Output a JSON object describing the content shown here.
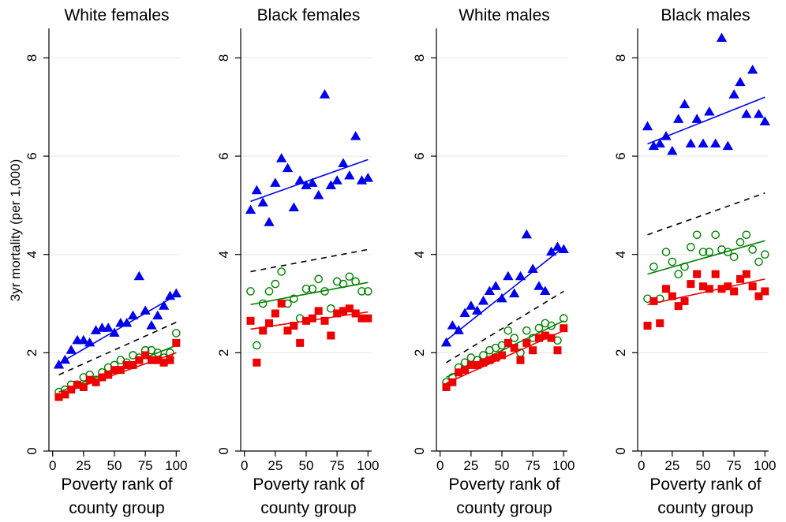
{
  "figure": {
    "ylabel": "3yr mortality (per 1,000)",
    "xlabel_line1": "Poverty rank of",
    "xlabel_line2": "county group",
    "x_ticks": [
      0,
      25,
      50,
      75,
      100
    ],
    "y_ticks": [
      0,
      2,
      4,
      6,
      8
    ],
    "ylim": [
      0,
      8.6
    ],
    "xlim": [
      -3,
      103
    ],
    "grid": true,
    "legend": "none",
    "colors": {
      "high_mortality_triangles": "#0000ee",
      "middle_circles": "#008000",
      "low_squares": "#ee0000",
      "dashed": "#000000"
    }
  },
  "chart_data": [
    {
      "type": "scatter",
      "title": "White females",
      "xlim": [
        -3,
        103
      ],
      "ylim": [
        0,
        8.6
      ],
      "series": [
        {
          "marker": "triangle",
          "color": "#0000ee",
          "x": [
            5,
            10,
            15,
            20,
            25,
            30,
            35,
            40,
            45,
            50,
            55,
            60,
            65,
            70,
            75,
            80,
            85,
            90,
            95,
            100
          ],
          "y": [
            1.75,
            1.85,
            2.05,
            2.25,
            2.25,
            2.2,
            2.45,
            2.5,
            2.5,
            2.4,
            2.6,
            2.6,
            2.75,
            3.55,
            2.85,
            2.55,
            2.75,
            2.95,
            3.15,
            3.2
          ],
          "fit": [
            1.78,
            3.17
          ]
        },
        {
          "marker": "circle-open",
          "color": "#008000",
          "x": [
            5,
            10,
            15,
            20,
            25,
            30,
            35,
            40,
            45,
            50,
            55,
            60,
            65,
            70,
            75,
            80,
            85,
            90,
            95,
            100
          ],
          "y": [
            1.2,
            1.25,
            1.35,
            1.35,
            1.5,
            1.55,
            1.45,
            1.6,
            1.7,
            1.75,
            1.85,
            1.8,
            1.95,
            1.9,
            2.05,
            2.05,
            2.0,
            1.9,
            2.0,
            2.4
          ],
          "fit": [
            1.2,
            2.15
          ]
        },
        {
          "marker": "square",
          "color": "#ee0000",
          "x": [
            5,
            10,
            15,
            20,
            25,
            30,
            35,
            40,
            45,
            50,
            55,
            60,
            65,
            70,
            75,
            80,
            85,
            90,
            95,
            100
          ],
          "y": [
            1.1,
            1.15,
            1.25,
            1.35,
            1.3,
            1.45,
            1.4,
            1.5,
            1.55,
            1.65,
            1.65,
            1.75,
            1.75,
            1.85,
            1.95,
            1.85,
            1.85,
            1.8,
            1.85,
            2.2
          ],
          "fit": [
            1.15,
            2.0
          ]
        },
        {
          "line": "dashed",
          "color": "#000000",
          "fit": [
            1.55,
            2.62
          ]
        }
      ]
    },
    {
      "type": "scatter",
      "title": "Black females",
      "xlim": [
        -3,
        103
      ],
      "ylim": [
        0,
        8.6
      ],
      "series": [
        {
          "marker": "triangle",
          "color": "#0000ee",
          "x": [
            5,
            10,
            15,
            20,
            25,
            30,
            35,
            40,
            45,
            50,
            55,
            60,
            65,
            70,
            75,
            80,
            85,
            90,
            95,
            100
          ],
          "y": [
            4.9,
            5.3,
            5.05,
            4.65,
            5.45,
            5.95,
            5.75,
            4.95,
            5.5,
            5.4,
            5.45,
            5.2,
            7.25,
            5.4,
            5.5,
            5.85,
            5.6,
            6.4,
            5.5,
            5.55
          ],
          "fit": [
            5.08,
            5.93
          ]
        },
        {
          "marker": "circle-open",
          "color": "#008000",
          "x": [
            5,
            10,
            15,
            20,
            25,
            30,
            35,
            40,
            45,
            50,
            55,
            60,
            65,
            70,
            75,
            80,
            85,
            90,
            95,
            100
          ],
          "y": [
            3.25,
            2.15,
            3.0,
            3.25,
            3.4,
            3.65,
            3.0,
            3.1,
            2.7,
            3.3,
            3.3,
            3.5,
            3.25,
            2.9,
            3.45,
            3.4,
            3.55,
            3.45,
            3.25,
            3.25
          ],
          "fit": [
            2.98,
            3.43
          ]
        },
        {
          "marker": "square",
          "color": "#ee0000",
          "x": [
            5,
            10,
            15,
            20,
            25,
            30,
            35,
            40,
            45,
            50,
            55,
            60,
            65,
            70,
            75,
            80,
            85,
            90,
            95,
            100
          ],
          "y": [
            2.65,
            1.8,
            2.45,
            2.6,
            2.8,
            3.0,
            2.45,
            2.55,
            2.2,
            2.65,
            2.7,
            2.85,
            2.65,
            2.35,
            2.8,
            2.85,
            2.9,
            2.8,
            2.7,
            2.7
          ],
          "fit": [
            2.48,
            2.83
          ]
        },
        {
          "line": "dashed",
          "color": "#000000",
          "fit": [
            3.65,
            4.1
          ]
        }
      ]
    },
    {
      "type": "scatter",
      "title": "White males",
      "xlim": [
        -3,
        103
      ],
      "ylim": [
        0,
        8.6
      ],
      "series": [
        {
          "marker": "triangle",
          "color": "#0000ee",
          "x": [
            5,
            10,
            15,
            20,
            25,
            30,
            35,
            40,
            45,
            50,
            55,
            60,
            65,
            70,
            75,
            80,
            85,
            90,
            95,
            100
          ],
          "y": [
            2.2,
            2.55,
            2.45,
            2.8,
            2.95,
            2.85,
            3.05,
            3.25,
            3.35,
            3.1,
            3.55,
            3.2,
            3.55,
            4.4,
            3.7,
            3.35,
            3.25,
            4.05,
            4.15,
            4.1
          ],
          "fit": [
            2.25,
            4.15
          ]
        },
        {
          "marker": "circle-open",
          "color": "#008000",
          "x": [
            5,
            10,
            15,
            20,
            25,
            30,
            35,
            40,
            45,
            50,
            55,
            60,
            65,
            70,
            75,
            80,
            85,
            90,
            95,
            100
          ],
          "y": [
            1.4,
            1.5,
            1.7,
            1.8,
            1.9,
            1.85,
            1.95,
            2.05,
            2.1,
            2.15,
            2.45,
            2.3,
            2.0,
            2.45,
            2.3,
            2.5,
            2.6,
            2.55,
            2.25,
            2.7
          ],
          "fit": [
            1.5,
            2.65
          ]
        },
        {
          "marker": "square",
          "color": "#ee0000",
          "x": [
            5,
            10,
            15,
            20,
            25,
            30,
            35,
            40,
            45,
            50,
            55,
            60,
            65,
            70,
            75,
            80,
            85,
            90,
            95,
            100
          ],
          "y": [
            1.3,
            1.4,
            1.6,
            1.65,
            1.75,
            1.75,
            1.8,
            1.85,
            1.9,
            1.95,
            2.2,
            2.1,
            1.85,
            2.2,
            2.05,
            2.3,
            2.35,
            2.3,
            2.05,
            2.5
          ],
          "fit": [
            1.38,
            2.45
          ]
        },
        {
          "line": "dashed",
          "color": "#000000",
          "fit": [
            1.8,
            3.25
          ]
        }
      ]
    },
    {
      "type": "scatter",
      "title": "Black males",
      "xlim": [
        -3,
        103
      ],
      "ylim": [
        0,
        8.6
      ],
      "series": [
        {
          "marker": "triangle",
          "color": "#0000ee",
          "x": [
            5,
            10,
            15,
            20,
            25,
            30,
            35,
            40,
            45,
            50,
            55,
            60,
            65,
            70,
            75,
            80,
            85,
            90,
            95,
            100
          ],
          "y": [
            6.6,
            6.2,
            6.25,
            6.4,
            6.1,
            6.75,
            7.05,
            6.25,
            6.75,
            6.25,
            6.9,
            6.25,
            8.4,
            6.2,
            7.25,
            7.5,
            6.85,
            7.75,
            6.85,
            6.7
          ],
          "fit": [
            6.25,
            7.2
          ]
        },
        {
          "marker": "circle-open",
          "color": "#008000",
          "x": [
            5,
            10,
            15,
            20,
            25,
            30,
            35,
            40,
            45,
            50,
            55,
            60,
            65,
            70,
            75,
            80,
            85,
            90,
            95,
            100
          ],
          "y": [
            3.1,
            3.75,
            3.1,
            4.05,
            3.85,
            3.6,
            3.75,
            4.15,
            4.4,
            4.05,
            4.05,
            4.4,
            4.1,
            4.05,
            3.95,
            4.25,
            4.4,
            4.1,
            3.85,
            4.0
          ],
          "fit": [
            3.6,
            4.28
          ]
        },
        {
          "marker": "square",
          "color": "#ee0000",
          "x": [
            5,
            10,
            15,
            20,
            25,
            30,
            35,
            40,
            45,
            50,
            55,
            60,
            65,
            70,
            75,
            80,
            85,
            90,
            95,
            100
          ],
          "y": [
            2.55,
            3.05,
            2.6,
            3.3,
            3.15,
            2.95,
            3.05,
            3.4,
            3.6,
            3.35,
            3.3,
            3.6,
            3.3,
            3.35,
            3.25,
            3.5,
            3.6,
            3.35,
            3.15,
            3.25
          ],
          "fit": [
            2.98,
            3.5
          ]
        },
        {
          "line": "dashed",
          "color": "#000000",
          "fit": [
            4.4,
            5.25
          ]
        }
      ]
    }
  ]
}
